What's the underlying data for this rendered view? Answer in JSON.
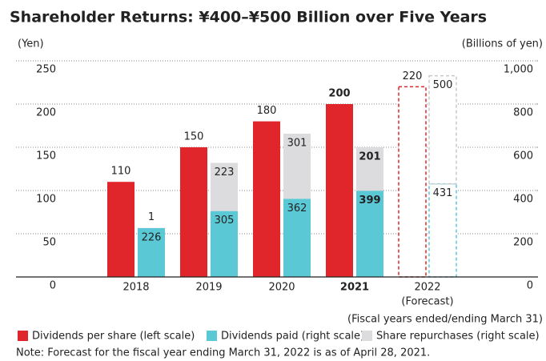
{
  "chart_data": {
    "type": "bar",
    "title": "Shareholder Returns: ¥400–¥500 Billion over Five Years",
    "y_label": "(Yen)",
    "y2_label": "(Billions of yen)",
    "x_note": "(Fiscal years ended/ending March 31)",
    "note": "Note: Forecast for the fiscal year ending March 31, 2022 is as of April 28, 2021.",
    "categories": [
      "2018",
      "2019",
      "2020",
      "2021",
      "2022"
    ],
    "forecast_label": "(Forecast)",
    "forecast": [
      false,
      false,
      false,
      false,
      true
    ],
    "emphasis": [
      false,
      false,
      false,
      true,
      false
    ],
    "series": [
      {
        "name": "Dividends per share (left scale)",
        "color": "#e0262b",
        "values": [
          110,
          150,
          180,
          200,
          220
        ]
      },
      {
        "name": "Dividends paid (right scale)",
        "color": "#5bc8d5",
        "axis": "y2",
        "stack": "returns",
        "values": [
          226,
          305,
          362,
          399,
          431
        ]
      },
      {
        "name": "Share repurchases (right scale)",
        "color": "#dcdbde",
        "axis": "y2",
        "stack": "returns",
        "values": [
          1,
          223,
          301,
          201,
          500
        ]
      }
    ],
    "ylim": [
      0,
      250
    ],
    "yticks": [
      0,
      50,
      100,
      150,
      200,
      250
    ],
    "y2lim": [
      0,
      1000
    ],
    "y2ticks": [
      0,
      200,
      400,
      600,
      800,
      {
        "value": 1000,
        "label": "1,000"
      }
    ],
    "grid": true
  }
}
